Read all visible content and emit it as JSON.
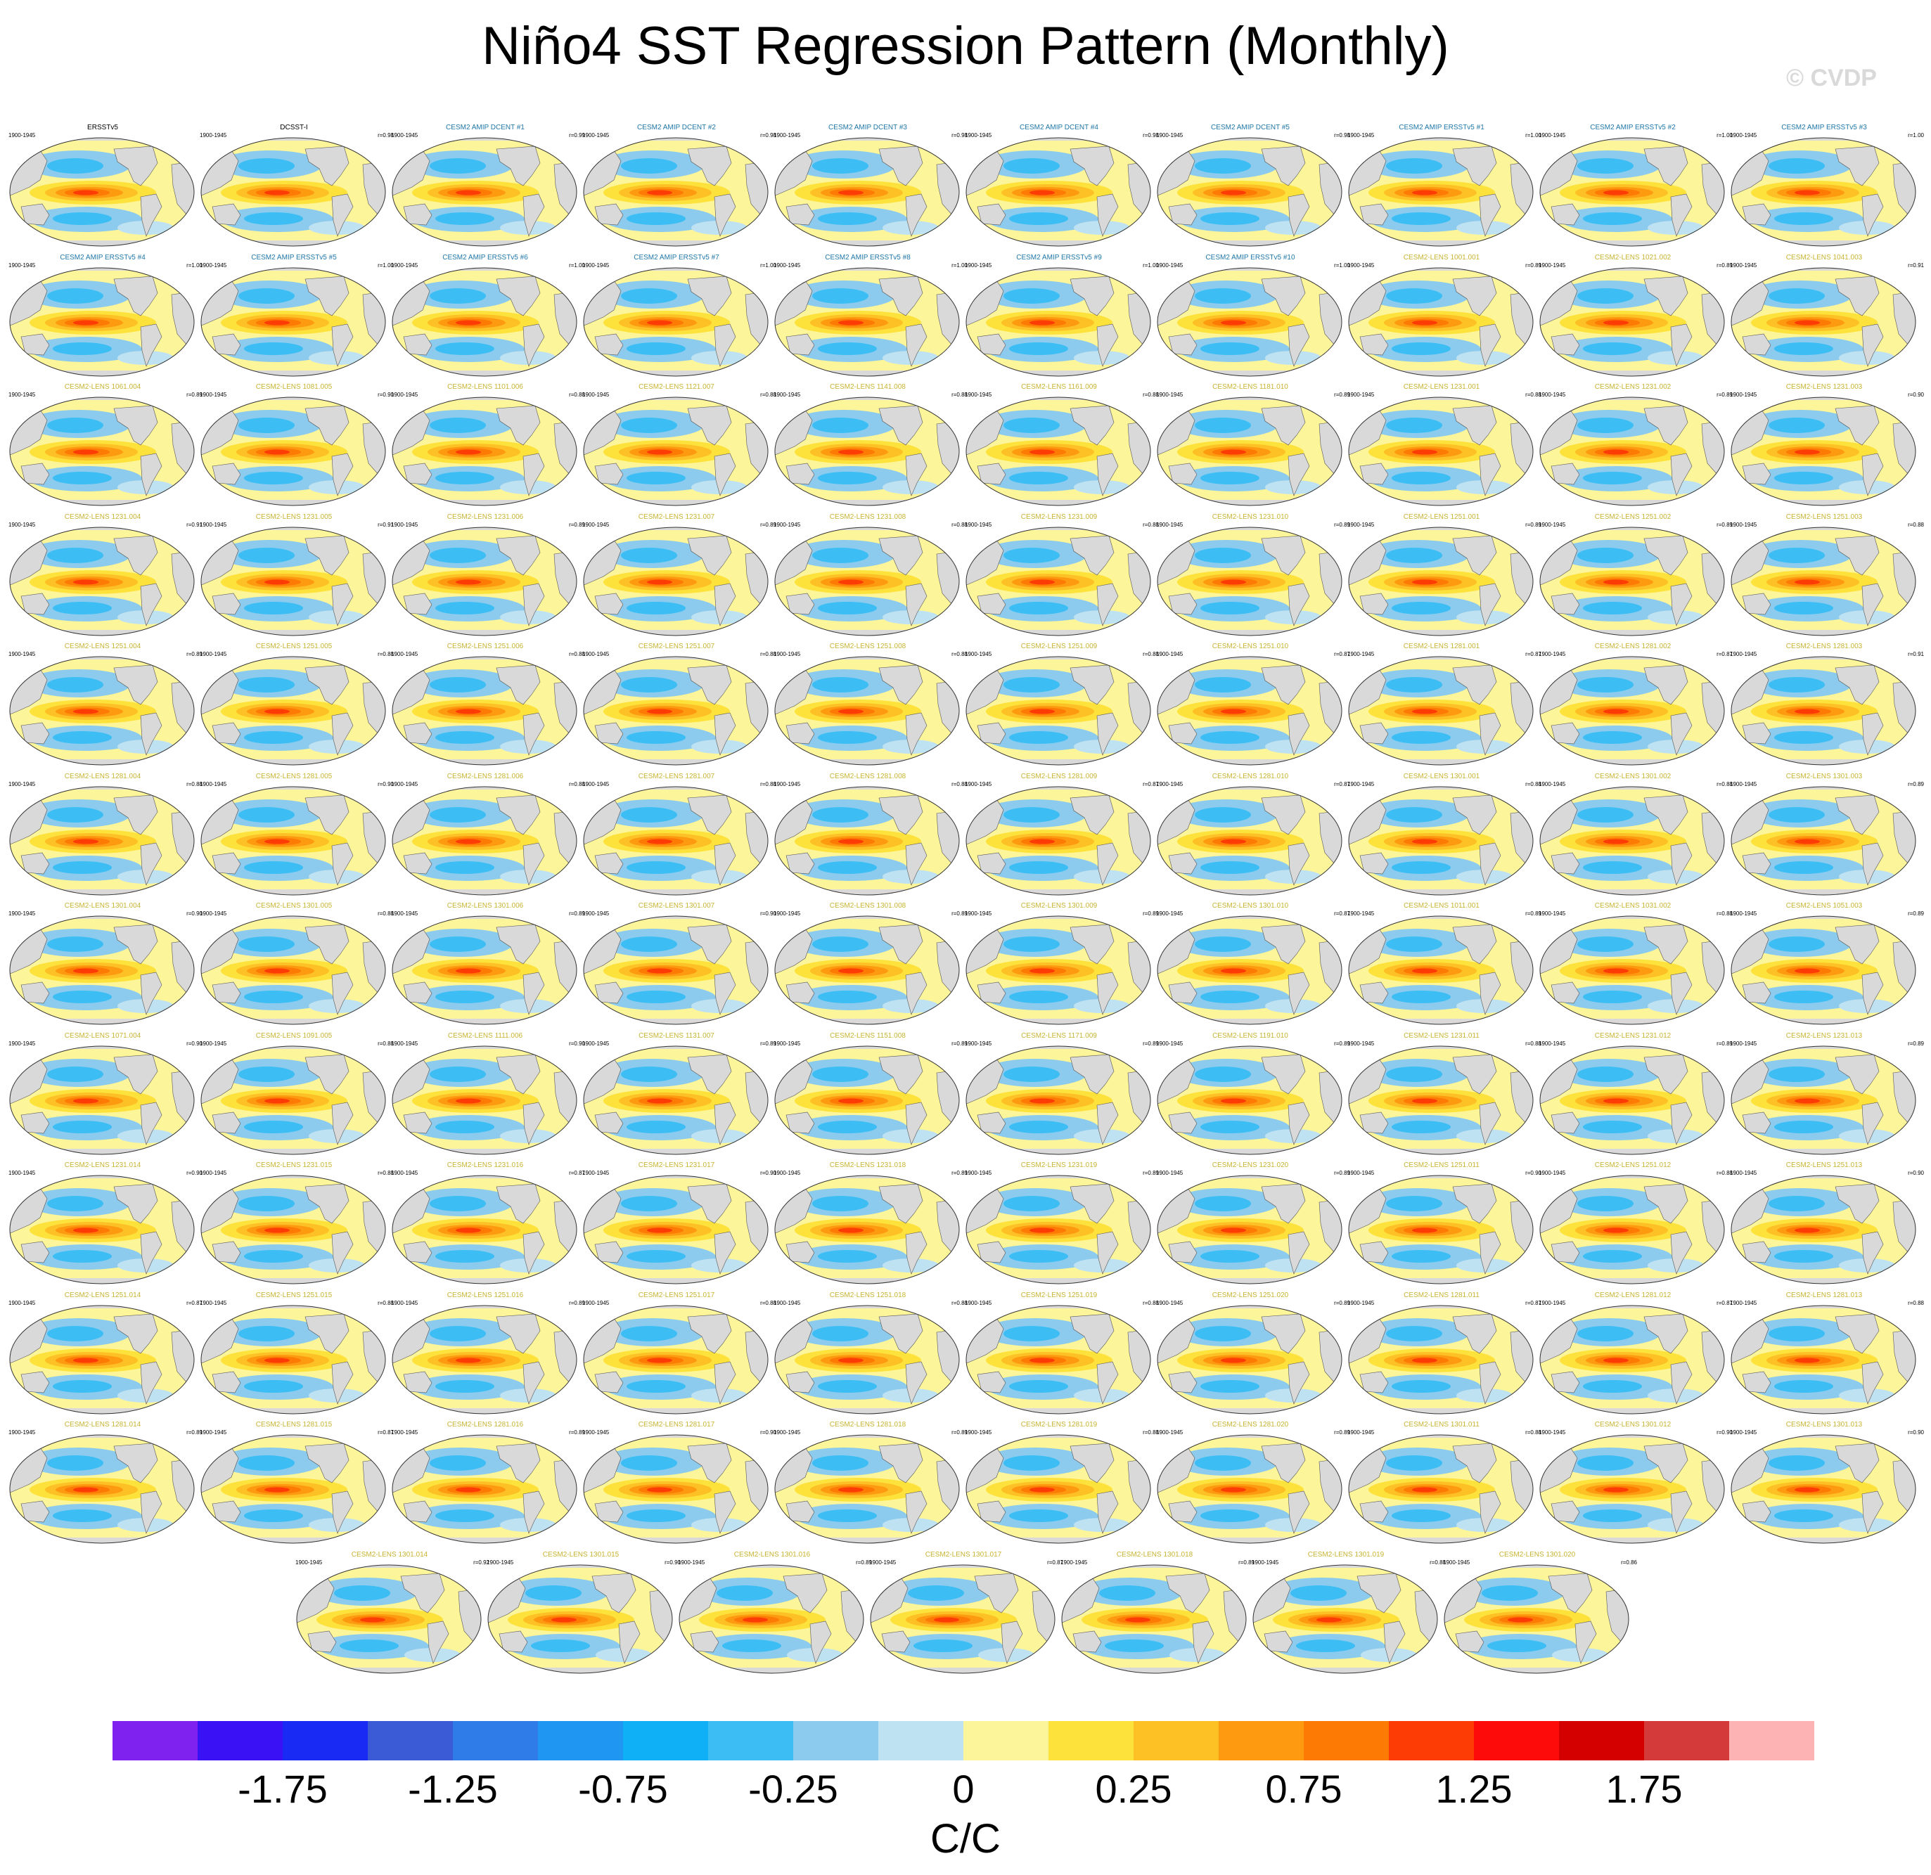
{
  "title": "Niño4 SST Regression Pattern (Monthly)",
  "watermark": "© CVDP",
  "period": "1900-1945",
  "title_colors": {
    "obs": "#000000",
    "amip": "#1f77a8",
    "lens": "#c8b432"
  },
  "panels": [
    {
      "title": "ERSSTv5",
      "kind": "obs",
      "corr": ""
    },
    {
      "title": "DCSST-I",
      "kind": "obs",
      "corr": "r=0.98"
    },
    {
      "title": "CESM2 AMIP DCENT #1",
      "kind": "amip",
      "corr": "r=0.99"
    },
    {
      "title": "CESM2 AMIP DCENT #2",
      "kind": "amip",
      "corr": "r=0.98"
    },
    {
      "title": "CESM2 AMIP DCENT #3",
      "kind": "amip",
      "corr": "r=0.98"
    },
    {
      "title": "CESM2 AMIP DCENT #4",
      "kind": "amip",
      "corr": "r=0.98"
    },
    {
      "title": "CESM2 AMIP DCENT #5",
      "kind": "amip",
      "corr": "r=0.98"
    },
    {
      "title": "CESM2 AMIP ERSSTv5 #1",
      "kind": "amip",
      "corr": "r=1.00"
    },
    {
      "title": "CESM2 AMIP ERSSTv5 #2",
      "kind": "amip",
      "corr": "r=1.00"
    },
    {
      "title": "CESM2 AMIP ERSSTv5 #3",
      "kind": "amip",
      "corr": "r=1.00"
    },
    {
      "title": "CESM2 AMIP ERSSTv5 #4",
      "kind": "amip",
      "corr": "r=1.00"
    },
    {
      "title": "CESM2 AMIP ERSSTv5 #5",
      "kind": "amip",
      "corr": "r=1.00"
    },
    {
      "title": "CESM2 AMIP ERSSTv5 #6",
      "kind": "amip",
      "corr": "r=1.00"
    },
    {
      "title": "CESM2 AMIP ERSSTv5 #7",
      "kind": "amip",
      "corr": "r=1.00"
    },
    {
      "title": "CESM2 AMIP ERSSTv5 #8",
      "kind": "amip",
      "corr": "r=1.00"
    },
    {
      "title": "CESM2 AMIP ERSSTv5 #9",
      "kind": "amip",
      "corr": "r=1.00"
    },
    {
      "title": "CESM2 AMIP ERSSTv5 #10",
      "kind": "amip",
      "corr": "r=1.00"
    },
    {
      "title": "CESM2-LENS 1001.001",
      "kind": "lens",
      "corr": "r=0.89"
    },
    {
      "title": "CESM2-LENS 1021.002",
      "kind": "lens",
      "corr": "r=0.89"
    },
    {
      "title": "CESM2-LENS 1041.003",
      "kind": "lens",
      "corr": "r=0.91"
    },
    {
      "title": "CESM2-LENS 1061.004",
      "kind": "lens",
      "corr": "r=0.89"
    },
    {
      "title": "CESM2-LENS 1081.005",
      "kind": "lens",
      "corr": "r=0.90"
    },
    {
      "title": "CESM2-LENS 1101.006",
      "kind": "lens",
      "corr": "r=0.88"
    },
    {
      "title": "CESM2-LENS 1121.007",
      "kind": "lens",
      "corr": "r=0.88"
    },
    {
      "title": "CESM2-LENS 1141.008",
      "kind": "lens",
      "corr": "r=0.88"
    },
    {
      "title": "CESM2-LENS 1161.009",
      "kind": "lens",
      "corr": "r=0.88"
    },
    {
      "title": "CESM2-LENS 1181.010",
      "kind": "lens",
      "corr": "r=0.89"
    },
    {
      "title": "CESM2-LENS 1231.001",
      "kind": "lens",
      "corr": "r=0.88"
    },
    {
      "title": "CESM2-LENS 1231.002",
      "kind": "lens",
      "corr": "r=0.89"
    },
    {
      "title": "CESM2-LENS 1231.003",
      "kind": "lens",
      "corr": "r=0.90"
    },
    {
      "title": "CESM2-LENS 1231.004",
      "kind": "lens",
      "corr": "r=0.91"
    },
    {
      "title": "CESM2-LENS 1231.005",
      "kind": "lens",
      "corr": "r=0.91"
    },
    {
      "title": "CESM2-LENS 1231.006",
      "kind": "lens",
      "corr": "r=0.89"
    },
    {
      "title": "CESM2-LENS 1231.007",
      "kind": "lens",
      "corr": "r=0.89"
    },
    {
      "title": "CESM2-LENS 1231.008",
      "kind": "lens",
      "corr": "r=0.88"
    },
    {
      "title": "CESM2-LENS 1231.009",
      "kind": "lens",
      "corr": "r=0.88"
    },
    {
      "title": "CESM2-LENS 1231.010",
      "kind": "lens",
      "corr": "r=0.89"
    },
    {
      "title": "CESM2-LENS 1251.001",
      "kind": "lens",
      "corr": "r=0.89"
    },
    {
      "title": "CESM2-LENS 1251.002",
      "kind": "lens",
      "corr": "r=0.89"
    },
    {
      "title": "CESM2-LENS 1251.003",
      "kind": "lens",
      "corr": "r=0.88"
    },
    {
      "title": "CESM2-LENS 1251.004",
      "kind": "lens",
      "corr": "r=0.89"
    },
    {
      "title": "CESM2-LENS 1251.005",
      "kind": "lens",
      "corr": "r=0.88"
    },
    {
      "title": "CESM2-LENS 1251.006",
      "kind": "lens",
      "corr": "r=0.88"
    },
    {
      "title": "CESM2-LENS 1251.007",
      "kind": "lens",
      "corr": "r=0.88"
    },
    {
      "title": "CESM2-LENS 1251.008",
      "kind": "lens",
      "corr": "r=0.88"
    },
    {
      "title": "CESM2-LENS 1251.009",
      "kind": "lens",
      "corr": "r=0.88"
    },
    {
      "title": "CESM2-LENS 1251.010",
      "kind": "lens",
      "corr": "r=0.87"
    },
    {
      "title": "CESM2-LENS 1281.001",
      "kind": "lens",
      "corr": "r=0.87"
    },
    {
      "title": "CESM2-LENS 1281.002",
      "kind": "lens",
      "corr": "r=0.87"
    },
    {
      "title": "CESM2-LENS 1281.003",
      "kind": "lens",
      "corr": "r=0.91"
    },
    {
      "title": "CESM2-LENS 1281.004",
      "kind": "lens",
      "corr": "r=0.88"
    },
    {
      "title": "CESM2-LENS 1281.005",
      "kind": "lens",
      "corr": "r=0.90"
    },
    {
      "title": "CESM2-LENS 1281.006",
      "kind": "lens",
      "corr": "r=0.88"
    },
    {
      "title": "CESM2-LENS 1281.007",
      "kind": "lens",
      "corr": "r=0.88"
    },
    {
      "title": "CESM2-LENS 1281.008",
      "kind": "lens",
      "corr": "r=0.88"
    },
    {
      "title": "CESM2-LENS 1281.009",
      "kind": "lens",
      "corr": "r=0.87"
    },
    {
      "title": "CESM2-LENS 1281.010",
      "kind": "lens",
      "corr": "r=0.87"
    },
    {
      "title": "CESM2-LENS 1301.001",
      "kind": "lens",
      "corr": "r=0.88"
    },
    {
      "title": "CESM2-LENS 1301.002",
      "kind": "lens",
      "corr": "r=0.88"
    },
    {
      "title": "CESM2-LENS 1301.003",
      "kind": "lens",
      "corr": "r=0.89"
    },
    {
      "title": "CESM2-LENS 1301.004",
      "kind": "lens",
      "corr": "r=0.90"
    },
    {
      "title": "CESM2-LENS 1301.005",
      "kind": "lens",
      "corr": "r=0.88"
    },
    {
      "title": "CESM2-LENS 1301.006",
      "kind": "lens",
      "corr": "r=0.89"
    },
    {
      "title": "CESM2-LENS 1301.007",
      "kind": "lens",
      "corr": "r=0.90"
    },
    {
      "title": "CESM2-LENS 1301.008",
      "kind": "lens",
      "corr": "r=0.89"
    },
    {
      "title": "CESM2-LENS 1301.009",
      "kind": "lens",
      "corr": "r=0.89"
    },
    {
      "title": "CESM2-LENS 1301.010",
      "kind": "lens",
      "corr": "r=0.87"
    },
    {
      "title": "CESM2-LENS 1011.001",
      "kind": "lens",
      "corr": "r=0.89"
    },
    {
      "title": "CESM2-LENS 1031.002",
      "kind": "lens",
      "corr": "r=0.88"
    },
    {
      "title": "CESM2-LENS 1051.003",
      "kind": "lens",
      "corr": "r=0.89"
    },
    {
      "title": "CESM2-LENS 1071.004",
      "kind": "lens",
      "corr": "r=0.90"
    },
    {
      "title": "CESM2-LENS 1091.005",
      "kind": "lens",
      "corr": "r=0.88"
    },
    {
      "title": "CESM2-LENS 1111.006",
      "kind": "lens",
      "corr": "r=0.90"
    },
    {
      "title": "CESM2-LENS 1131.007",
      "kind": "lens",
      "corr": "r=0.89"
    },
    {
      "title": "CESM2-LENS 1151.008",
      "kind": "lens",
      "corr": "r=0.89"
    },
    {
      "title": "CESM2-LENS 1171.009",
      "kind": "lens",
      "corr": "r=0.89"
    },
    {
      "title": "CESM2-LENS 1191.010",
      "kind": "lens",
      "corr": "r=0.89"
    },
    {
      "title": "CESM2-LENS 1231.011",
      "kind": "lens",
      "corr": "r=0.88"
    },
    {
      "title": "CESM2-LENS 1231.012",
      "kind": "lens",
      "corr": "r=0.89"
    },
    {
      "title": "CESM2-LENS 1231.013",
      "kind": "lens",
      "corr": "r=0.89"
    },
    {
      "title": "CESM2-LENS 1231.014",
      "kind": "lens",
      "corr": "r=0.90"
    },
    {
      "title": "CESM2-LENS 1231.015",
      "kind": "lens",
      "corr": "r=0.88"
    },
    {
      "title": "CESM2-LENS 1231.016",
      "kind": "lens",
      "corr": "r=0.87"
    },
    {
      "title": "CESM2-LENS 1231.017",
      "kind": "lens",
      "corr": "r=0.90"
    },
    {
      "title": "CESM2-LENS 1231.018",
      "kind": "lens",
      "corr": "r=0.89"
    },
    {
      "title": "CESM2-LENS 1231.019",
      "kind": "lens",
      "corr": "r=0.89"
    },
    {
      "title": "CESM2-LENS 1231.020",
      "kind": "lens",
      "corr": "r=0.89"
    },
    {
      "title": "CESM2-LENS 1251.011",
      "kind": "lens",
      "corr": "r=0.90"
    },
    {
      "title": "CESM2-LENS 1251.012",
      "kind": "lens",
      "corr": "r=0.88"
    },
    {
      "title": "CESM2-LENS 1251.013",
      "kind": "lens",
      "corr": "r=0.90"
    },
    {
      "title": "CESM2-LENS 1251.014",
      "kind": "lens",
      "corr": "r=0.87"
    },
    {
      "title": "CESM2-LENS 1251.015",
      "kind": "lens",
      "corr": "r=0.88"
    },
    {
      "title": "CESM2-LENS 1251.016",
      "kind": "lens",
      "corr": "r=0.89"
    },
    {
      "title": "CESM2-LENS 1251.017",
      "kind": "lens",
      "corr": "r=0.88"
    },
    {
      "title": "CESM2-LENS 1251.018",
      "kind": "lens",
      "corr": "r=0.88"
    },
    {
      "title": "CESM2-LENS 1251.019",
      "kind": "lens",
      "corr": "r=0.88"
    },
    {
      "title": "CESM2-LENS 1251.020",
      "kind": "lens",
      "corr": "r=0.89"
    },
    {
      "title": "CESM2-LENS 1281.011",
      "kind": "lens",
      "corr": "r=0.87"
    },
    {
      "title": "CESM2-LENS 1281.012",
      "kind": "lens",
      "corr": "r=0.87"
    },
    {
      "title": "CESM2-LENS 1281.013",
      "kind": "lens",
      "corr": "r=0.88"
    },
    {
      "title": "CESM2-LENS 1281.014",
      "kind": "lens",
      "corr": "r=0.89"
    },
    {
      "title": "CESM2-LENS 1281.015",
      "kind": "lens",
      "corr": "r=0.87"
    },
    {
      "title": "CESM2-LENS 1281.016",
      "kind": "lens",
      "corr": "r=0.89"
    },
    {
      "title": "CESM2-LENS 1281.017",
      "kind": "lens",
      "corr": "r=0.90"
    },
    {
      "title": "CESM2-LENS 1281.018",
      "kind": "lens",
      "corr": "r=0.89"
    },
    {
      "title": "CESM2-LENS 1281.019",
      "kind": "lens",
      "corr": "r=0.88"
    },
    {
      "title": "CESM2-LENS 1281.020",
      "kind": "lens",
      "corr": "r=0.89"
    },
    {
      "title": "CESM2-LENS 1301.011",
      "kind": "lens",
      "corr": "r=0.88"
    },
    {
      "title": "CESM2-LENS 1301.012",
      "kind": "lens",
      "corr": "r=0.90"
    },
    {
      "title": "CESM2-LENS 1301.013",
      "kind": "lens",
      "corr": "r=0.90"
    },
    {
      "title": "CESM2-LENS 1301.014",
      "kind": "lens",
      "corr": "r=0.92"
    },
    {
      "title": "CESM2-LENS 1301.015",
      "kind": "lens",
      "corr": "r=0.90"
    },
    {
      "title": "CESM2-LENS 1301.016",
      "kind": "lens",
      "corr": "r=0.89"
    },
    {
      "title": "CESM2-LENS 1301.017",
      "kind": "lens",
      "corr": "r=0.87"
    },
    {
      "title": "CESM2-LENS 1301.018",
      "kind": "lens",
      "corr": "r=0.89"
    },
    {
      "title": "CESM2-LENS 1301.019",
      "kind": "lens",
      "corr": "r=0.88"
    },
    {
      "title": "CESM2-LENS 1301.020",
      "kind": "lens",
      "corr": "r=0.86"
    }
  ],
  "colorbar": {
    "colors": [
      "#7f22f0",
      "#3a10f5",
      "#1a2af5",
      "#3b5ad6",
      "#2f7ce8",
      "#1e96f2",
      "#0fb0f5",
      "#3cbef5",
      "#8ccbed",
      "#bfe2f2",
      "#fdf59a",
      "#fde23c",
      "#fdc025",
      "#fd9a10",
      "#fd7a05",
      "#fd3c05",
      "#fd0a0a",
      "#d40000",
      "#d43a3a",
      "#fdb3b3"
    ],
    "labels": [
      "-1.75",
      "-1.25",
      "-0.75",
      "-0.25",
      "0",
      "0.25",
      "0.75",
      "1.25",
      "1.75"
    ],
    "label_boundary_index": [
      2,
      4,
      6,
      8,
      10,
      12,
      14,
      16,
      18
    ],
    "units": "C/C"
  }
}
